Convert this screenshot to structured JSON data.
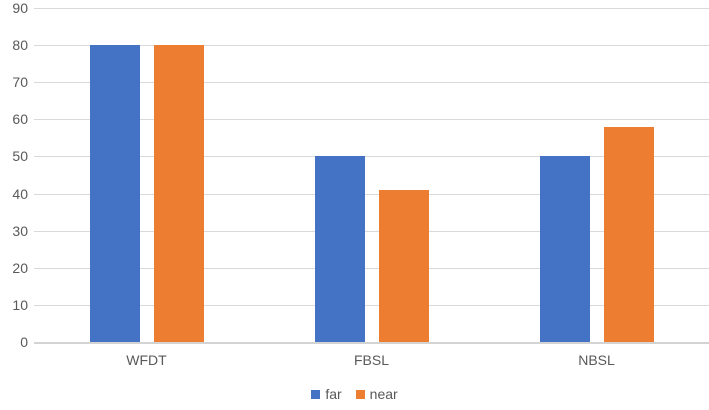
{
  "chart_data": {
    "type": "bar",
    "title": "",
    "xlabel": "",
    "ylabel": "",
    "categories": [
      "WFDT",
      "FBSL",
      "NBSL"
    ],
    "series": [
      {
        "name": "far",
        "color": "#4472C4",
        "values": [
          80,
          50,
          50
        ]
      },
      {
        "name": "near",
        "color": "#ED7D31",
        "values": [
          80,
          41,
          58
        ]
      }
    ],
    "ylim": [
      0,
      90
    ],
    "yticks": [
      0,
      10,
      20,
      30,
      40,
      50,
      60,
      70,
      80,
      90
    ],
    "grid": true,
    "legend_position": "bottom"
  },
  "colors": {
    "grid": "#D9D9D9",
    "axis": "#D3D3D3",
    "text": "#595959",
    "background": "#FFFFFF"
  }
}
